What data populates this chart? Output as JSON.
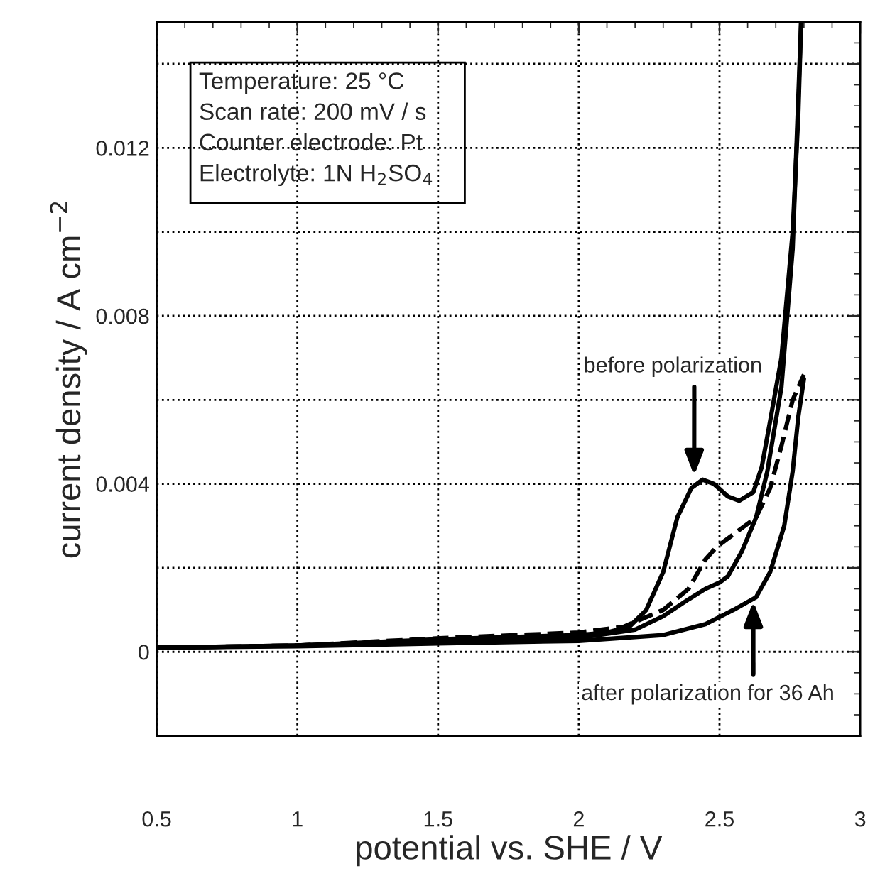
{
  "chart_data": {
    "type": "line",
    "xlabel": "potential vs. SHE / V",
    "ylabel": "current density / A cm$^{−2}$",
    "xlim": [
      0.5,
      3
    ],
    "ylim": [
      -0.002,
      0.015
    ],
    "xticks": [
      0.5,
      1,
      1.5,
      2,
      2.5,
      3
    ],
    "yticks": [
      0,
      {
        "value": 0.002,
        "label": null
      },
      0.004,
      {
        "value": 0.006,
        "label": null
      },
      0.008,
      {
        "value": 0.01,
        "label": null
      },
      0.012,
      {
        "value": 0.014,
        "label": null
      }
    ],
    "grid": true,
    "marker": "none",
    "series": [
      {
        "color": "#000000",
        "line_style": "solid",
        "x": [
          0.5,
          1.0,
          1.5,
          2.0,
          2.1,
          2.18,
          2.24,
          2.3,
          2.35,
          2.4,
          2.44,
          2.48,
          2.53,
          2.57,
          2.62,
          2.65,
          2.68,
          2.72,
          2.76,
          2.78,
          2.79
        ],
        "values": [
          0.0001,
          0.00015,
          0.0003,
          0.0004,
          0.00046,
          0.0006,
          0.001,
          0.0019,
          0.0032,
          0.0039,
          0.0041,
          0.004,
          0.0037,
          0.0036,
          0.0038,
          0.0044,
          0.0055,
          0.007,
          0.01,
          0.0128,
          0.015
        ]
      },
      {
        "color": "#000000",
        "line_style": "solid",
        "x": [
          0.5,
          1.0,
          1.5,
          2.0,
          2.2,
          2.3,
          2.39,
          2.45,
          2.5,
          2.53,
          2.58,
          2.63,
          2.67,
          2.72,
          2.76,
          2.79
        ],
        "values": [
          0.0001,
          0.00015,
          0.00025,
          0.00033,
          0.00053,
          0.00085,
          0.00125,
          0.0015,
          0.00165,
          0.0018,
          0.0024,
          0.0032,
          0.0043,
          0.0063,
          0.0096,
          0.015
        ]
      },
      {
        "color": "#000000",
        "line_style": "dashed",
        "x": [
          0.5,
          1.0,
          1.52,
          2.0,
          2.16,
          2.3,
          2.39,
          2.45,
          2.49,
          2.55,
          2.63,
          2.68,
          2.72,
          2.76,
          2.8
        ],
        "values": [
          0.0001,
          0.00015,
          0.00033,
          0.00046,
          0.0006,
          0.001,
          0.0015,
          0.0022,
          0.0025,
          0.0028,
          0.0032,
          0.0039,
          0.0049,
          0.006,
          0.0066
        ]
      },
      {
        "color": "#000000",
        "line_style": "solid",
        "x": [
          0.5,
          1.0,
          1.5,
          2.0,
          2.3,
          2.45,
          2.55,
          2.63,
          2.68,
          2.73,
          2.76,
          2.78,
          2.8
        ],
        "values": [
          0.0001,
          0.00013,
          0.0002,
          0.00026,
          0.0004,
          0.00066,
          0.001,
          0.0013,
          0.0019,
          0.003,
          0.0043,
          0.0056,
          0.0065
        ]
      }
    ],
    "annotations": [
      "Temperature: 25 °C",
      "Scan rate: 200 mV / s",
      "Counter electrode: Pt",
      "Electrolyte: 1N H$_{2}$SO$_{4}$",
      {
        "text": "before polarization",
        "x": 2.41,
        "y": 0.0042
      },
      {
        "text": "after polarization for 36 Ah",
        "x": 2.62,
        "y": 0.0012
      }
    ]
  }
}
